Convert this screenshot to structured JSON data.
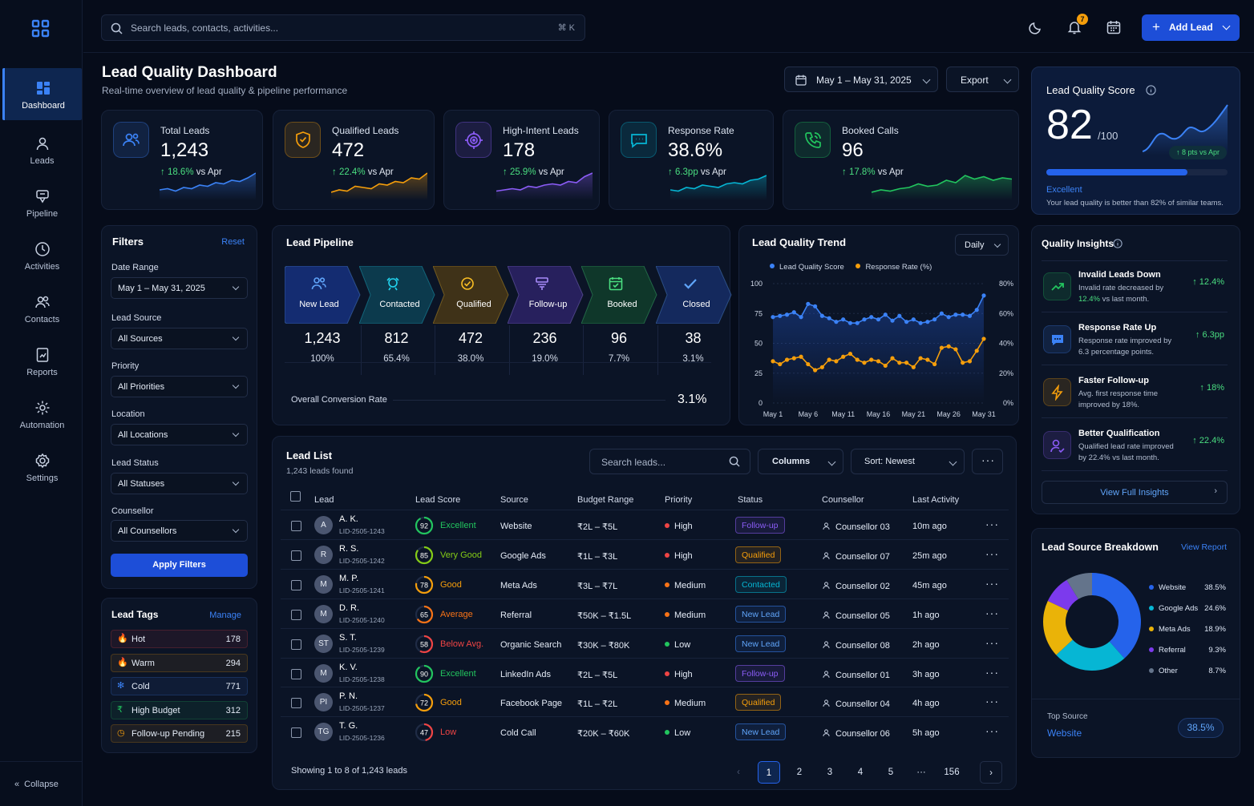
{
  "app": {
    "nav": [
      {
        "label": "Dashboard",
        "icon": "grid-icon"
      },
      {
        "label": "Leads",
        "icon": "user-icon"
      },
      {
        "label": "Pipeline",
        "icon": "funnel-icon"
      },
      {
        "label": "Activities",
        "icon": "clock-icon"
      },
      {
        "label": "Contacts",
        "icon": "users-icon"
      },
      {
        "label": "Reports",
        "icon": "report-icon"
      },
      {
        "label": "Automation",
        "icon": "gear-icon"
      },
      {
        "label": "Settings",
        "icon": "settings-icon"
      }
    ],
    "collapse": "Collapse"
  },
  "topbar": {
    "search_placeholder": "Search leads, contacts, activities...",
    "shortcut": "⌘ K",
    "notif_count": "7",
    "add_lead": "Add Lead"
  },
  "header": {
    "title": "Lead Quality Dashboard",
    "subtitle": "Real-time overview of lead quality & pipeline performance",
    "date_range": "May 1 – May 31, 2025",
    "export": "Export"
  },
  "kpis": [
    {
      "label": "Total Leads",
      "value": "1,243",
      "delta": "↑ 18.6%",
      "suffix": " vs Apr",
      "color": "#3b82f6"
    },
    {
      "label": "Qualified Leads",
      "value": "472",
      "delta": "↑ 22.4%",
      "suffix": " vs Apr",
      "color": "#f59e0b"
    },
    {
      "label": "High-Intent Leads",
      "value": "178",
      "delta": "↑ 25.9%",
      "suffix": " vs Apr",
      "color": "#8b5cf6"
    },
    {
      "label": "Response Rate",
      "value": "38.6%",
      "delta": "↑ 6.3pp",
      "suffix": " vs Apr",
      "color": "#06b6d4"
    },
    {
      "label": "Booked Calls",
      "value": "96",
      "delta": "↑ 17.8%",
      "suffix": " vs Apr",
      "color": "#22c55e"
    }
  ],
  "score": {
    "title": "Lead Quality Score",
    "value": "82",
    "max": "/100",
    "badge": "↑ 8 pts vs Apr",
    "level": "Excellent",
    "note": "Your lead quality is better than 82% of similar teams.",
    "fill": 0.82
  },
  "filters": {
    "title": "Filters",
    "reset": "Reset",
    "date_label": "Date Range",
    "date": "May 1 – May 31, 2025",
    "source_label": "Lead Source",
    "source": "All Sources",
    "priority_label": "Priority",
    "priority": "All Priorities",
    "location_label": "Location",
    "location": "All Locations",
    "status_label": "Lead Status",
    "status": "All Statuses",
    "counsellor_label": "Counsellor",
    "counsellor": "All Counsellors",
    "apply": "Apply Filters"
  },
  "tags": {
    "title": "Lead Tags",
    "manage": "Manage",
    "items": [
      {
        "label": "Hot",
        "count": "178",
        "color": "#ef4444",
        "icon": "flame-icon"
      },
      {
        "label": "Warm",
        "count": "294",
        "color": "#f59e0b",
        "icon": "flame-icon"
      },
      {
        "label": "Cold",
        "count": "771",
        "color": "#3b82f6",
        "icon": "snowflake-icon"
      },
      {
        "label": "High Budget",
        "count": "312",
        "color": "#22c55e",
        "icon": "rupee-icon"
      },
      {
        "label": "Follow-up Pending",
        "count": "215",
        "color": "#f59e0b",
        "icon": "clock-icon"
      }
    ]
  },
  "pipeline": {
    "title": "Lead Pipeline",
    "stages": [
      {
        "label": "New Lead",
        "count": "1,243",
        "pct": "100%",
        "color": "#1e40af"
      },
      {
        "label": "Contacted",
        "count": "812",
        "pct": "65.4%",
        "color": "#0e5a6e"
      },
      {
        "label": "Qualified",
        "count": "472",
        "pct": "38.0%",
        "color": "#6b4a0c"
      },
      {
        "label": "Follow-up",
        "count": "236",
        "pct": "19.0%",
        "color": "#3f2a8a"
      },
      {
        "label": "Booked",
        "count": "96",
        "pct": "7.7%",
        "color": "#14532d"
      },
      {
        "label": "Closed",
        "count": "38",
        "pct": "3.1%",
        "color": "#1e3a8a"
      }
    ],
    "overall_label": "Overall Conversion Rate",
    "overall": "3.1%"
  },
  "trend": {
    "title": "Lead Quality Trend",
    "period": "Daily",
    "legend": [
      "Lead Quality Score",
      "Response Rate (%)"
    ],
    "left_ticks": [
      "100",
      "75",
      "50",
      "25",
      "0"
    ],
    "right_ticks": [
      "80%",
      "60%",
      "40%",
      "20%",
      "0%"
    ],
    "x_ticks": [
      "May 1",
      "May 6",
      "May 11",
      "May 16",
      "May 21",
      "May 26",
      "May 31"
    ]
  },
  "chart_data": {
    "type": "line",
    "x": [
      "May 1",
      "May 2",
      "May 3",
      "May 4",
      "May 5",
      "May 6",
      "May 7",
      "May 8",
      "May 9",
      "May 10",
      "May 11",
      "May 12",
      "May 13",
      "May 14",
      "May 15",
      "May 16",
      "May 17",
      "May 18",
      "May 19",
      "May 20",
      "May 21",
      "May 22",
      "May 23",
      "May 24",
      "May 25",
      "May 26",
      "May 27",
      "May 28",
      "May 29",
      "May 30",
      "May 31"
    ],
    "series": [
      {
        "name": "Lead Quality Score",
        "axis": "left",
        "color": "#3b82f6",
        "values": [
          72,
          73,
          74,
          76,
          72,
          83,
          81,
          73,
          71,
          68,
          70,
          67,
          67,
          70,
          72,
          70,
          74,
          69,
          73,
          68,
          70,
          67,
          68,
          70,
          75,
          72,
          74,
          74,
          73,
          78,
          90
        ]
      },
      {
        "name": "Response Rate (%)",
        "axis": "right",
        "color": "#f59e0b",
        "values": [
          28,
          26,
          29,
          30,
          31,
          26,
          22,
          24,
          29,
          28,
          31,
          33,
          29,
          27,
          29,
          28,
          25,
          30,
          27,
          27,
          24,
          30,
          29,
          26,
          37,
          38,
          36,
          27,
          28,
          35,
          43
        ]
      }
    ],
    "ylim_left": [
      0,
      100
    ],
    "ylim_right": [
      0,
      80
    ]
  },
  "list": {
    "title": "Lead List",
    "count": "1,243 leads found",
    "search_placeholder": "Search leads...",
    "columns_btn": "Columns",
    "sort": "Sort: Newest",
    "headers": [
      "Lead",
      "Lead Score",
      "Source",
      "Budget Range",
      "Priority",
      "Status",
      "Counsellor",
      "Last Activity"
    ],
    "rows": [
      {
        "initials": "A",
        "name": "A. K.",
        "id": "LID-2505-1243",
        "score": 92,
        "score_label": "Excellent",
        "score_color": "#22c55e",
        "source": "Website",
        "budget": "₹2L – ₹5L",
        "priority": "High",
        "pri_color": "#ef4444",
        "status": "Follow-up",
        "st_color": "#8b5cf6",
        "counsellor": "Counsellor 03",
        "activity": "10m ago"
      },
      {
        "initials": "R",
        "name": "R. S.",
        "id": "LID-2505-1242",
        "score": 85,
        "score_label": "Very Good",
        "score_color": "#84cc16",
        "source": "Google Ads",
        "budget": "₹1L – ₹3L",
        "priority": "High",
        "pri_color": "#ef4444",
        "status": "Qualified",
        "st_color": "#f59e0b",
        "counsellor": "Counsellor 07",
        "activity": "25m ago"
      },
      {
        "initials": "M",
        "name": "M. P.",
        "id": "LID-2505-1241",
        "score": 78,
        "score_label": "Good",
        "score_color": "#f59e0b",
        "source": "Meta Ads",
        "budget": "₹3L – ₹7L",
        "priority": "Medium",
        "pri_color": "#f97316",
        "status": "Contacted",
        "st_color": "#06b6d4",
        "counsellor": "Counsellor 02",
        "activity": "45m ago"
      },
      {
        "initials": "M",
        "name": "D. R.",
        "id": "LID-2505-1240",
        "score": 65,
        "score_label": "Average",
        "score_color": "#f97316",
        "source": "Referral",
        "budget": "₹50K – ₹1.5L",
        "priority": "Medium",
        "pri_color": "#f97316",
        "status": "New Lead",
        "st_color": "#3b82f6",
        "counsellor": "Counsellor 05",
        "activity": "1h ago"
      },
      {
        "initials": "ST",
        "name": "S. T.",
        "id": "LID-2505-1239",
        "score": 58,
        "score_label": "Below Avg.",
        "score_color": "#ef4444",
        "source": "Organic Search",
        "budget": "₹30K – ₹80K",
        "priority": "Low",
        "pri_color": "#22c55e",
        "status": "New Lead",
        "st_color": "#3b82f6",
        "counsellor": "Counsellor 08",
        "activity": "2h ago"
      },
      {
        "initials": "M",
        "name": "K. V.",
        "id": "LID-2505-1238",
        "score": 90,
        "score_label": "Excellent",
        "score_color": "#22c55e",
        "source": "LinkedIn Ads",
        "budget": "₹2L – ₹5L",
        "priority": "High",
        "pri_color": "#ef4444",
        "status": "Follow-up",
        "st_color": "#8b5cf6",
        "counsellor": "Counsellor 01",
        "activity": "3h ago"
      },
      {
        "initials": "PI",
        "name": "P. N.",
        "id": "LID-2505-1237",
        "score": 72,
        "score_label": "Good",
        "score_color": "#f59e0b",
        "source": "Facebook Page",
        "budget": "₹1L – ₹2L",
        "priority": "Medium",
        "pri_color": "#f97316",
        "status": "Qualified",
        "st_color": "#f59e0b",
        "counsellor": "Counsellor 04",
        "activity": "4h ago"
      },
      {
        "initials": "TG",
        "name": "T. G.",
        "id": "LID-2505-1236",
        "score": 47,
        "score_label": "Low",
        "score_color": "#ef4444",
        "source": "Cold Call",
        "budget": "₹20K – ₹60K",
        "priority": "Low",
        "pri_color": "#22c55e",
        "status": "New Lead",
        "st_color": "#3b82f6",
        "counsellor": "Counsellor 06",
        "activity": "5h ago"
      }
    ],
    "showing": "Showing 1 to 8 of 1,243 leads",
    "pages": [
      "1",
      "2",
      "3",
      "4",
      "5",
      "···",
      "156"
    ]
  },
  "insights": {
    "title": "Quality Insights",
    "items": [
      {
        "title": "Invalid Leads Down",
        "desc1": "Invalid rate decreased by ",
        "hl": "12.4%",
        "desc2": " vs last month.",
        "value": "↑ 12.4%",
        "color": "#22c55e",
        "icon": "trend-up-icon"
      },
      {
        "title": "Response Rate Up",
        "desc1": "Response rate improved by 6.3 percentage points.",
        "hl": "",
        "desc2": "",
        "value": "↑ 6.3pp",
        "color": "#3b82f6",
        "icon": "chat-icon"
      },
      {
        "title": "Faster Follow-up",
        "desc1": "Avg. first response time improved by 18%.",
        "hl": "",
        "desc2": "",
        "value": "↑ 18%",
        "color": "#f59e0b",
        "icon": "bolt-icon"
      },
      {
        "title": "Better Qualification",
        "desc1": "Qualified lead rate improved by 22.4% vs last month.",
        "hl": "",
        "desc2": "",
        "value": "↑ 22.4%",
        "color": "#8b5cf6",
        "icon": "user-check-icon"
      }
    ],
    "view_all": "View Full Insights"
  },
  "sources": {
    "title": "Lead Source Breakdown",
    "view": "View Report",
    "items": [
      {
        "label": "Website",
        "pct": "38.5%",
        "value": 38.5,
        "color": "#2563eb"
      },
      {
        "label": "Google Ads",
        "pct": "24.6%",
        "value": 24.6,
        "color": "#06b6d4"
      },
      {
        "label": "Meta Ads",
        "pct": "18.9%",
        "value": 18.9,
        "color": "#eab308"
      },
      {
        "label": "Referral",
        "pct": "9.3%",
        "value": 9.3,
        "color": "#7c3aed"
      },
      {
        "label": "Other",
        "pct": "8.7%",
        "value": 8.7,
        "color": "#64748b"
      }
    ],
    "top_label": "Top Source",
    "top": "Website",
    "top_pct": "38.5%"
  }
}
